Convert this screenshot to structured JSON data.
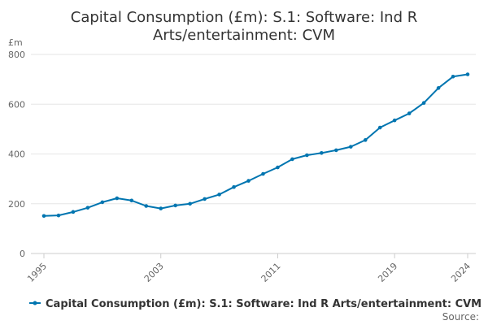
{
  "chart_data": {
    "type": "line",
    "title_lines": [
      "Capital Consumption (£m): S.1: Software: Ind R",
      "Arts/entertainment: CVM"
    ],
    "ylabel": "£m",
    "xlabel": "",
    "ylim": [
      0,
      800
    ],
    "yticks": [
      0,
      200,
      400,
      600,
      800
    ],
    "xlim": [
      1995,
      2024
    ],
    "xticks": [
      1995,
      2003,
      2011,
      2019,
      2024
    ],
    "grid": true,
    "legend_position": "bottom",
    "series": [
      {
        "name": "Capital Consumption (£m): S.1: Software: Ind R Arts/entertainment: CVM",
        "color": "#0075b0",
        "x": [
          1995,
          1996,
          1997,
          1998,
          1999,
          2000,
          2001,
          2002,
          2003,
          2004,
          2005,
          2006,
          2007,
          2008,
          2009,
          2010,
          2011,
          2012,
          2013,
          2014,
          2015,
          2016,
          2017,
          2018,
          2019,
          2020,
          2021,
          2022,
          2023,
          2024
        ],
        "values": [
          151,
          153,
          167,
          184,
          206,
          222,
          213,
          191,
          181,
          193,
          200,
          219,
          237,
          267,
          292,
          320,
          346,
          379,
          395,
          404,
          415,
          429,
          456,
          506,
          535,
          563,
          605,
          665,
          711,
          720
        ]
      }
    ],
    "source": "Source:"
  }
}
